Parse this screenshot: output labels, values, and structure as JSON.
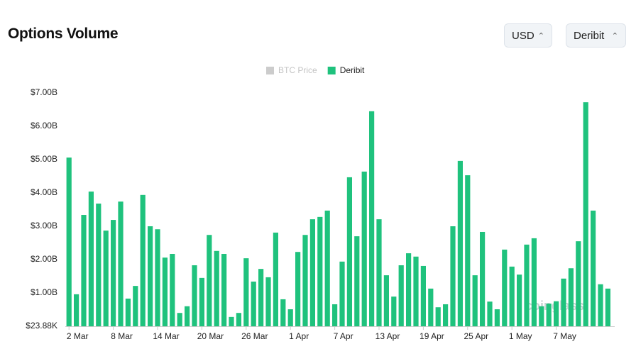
{
  "title": "Options Volume",
  "currency_select": "USD",
  "exchange_select": "Deribit",
  "watermark": "coinglass",
  "chart_data": {
    "type": "bar",
    "legend": [
      {
        "name": "BTC Price",
        "color": "#cccccc",
        "hidden": true
      }
    ],
    "categories": [
      "2 Mar",
      null,
      null,
      null,
      null,
      null,
      "8 Mar",
      null,
      null,
      null,
      null,
      null,
      "14 Mar",
      null,
      null,
      null,
      null,
      null,
      "20 Mar",
      null,
      null,
      null,
      null,
      null,
      "26 Mar",
      null,
      null,
      null,
      null,
      null,
      "1 Apr",
      null,
      null,
      null,
      null,
      null,
      "7 Apr",
      null,
      null,
      null,
      null,
      null,
      "13 Apr",
      null,
      null,
      null,
      null,
      null,
      "19 Apr",
      null,
      null,
      null,
      null,
      null,
      "25 Apr",
      null,
      null,
      null,
      null,
      null,
      "1 May",
      null,
      null,
      null,
      null,
      null,
      "7 May",
      null,
      null,
      null,
      null,
      null,
      null,
      null
    ],
    "series": [
      {
        "name": "Deribit",
        "color": "#1fc27d",
        "values": [
          5.06,
          0.96,
          3.34,
          4.04,
          3.68,
          2.87,
          3.19,
          3.74,
          0.83,
          1.21,
          3.94,
          3.0,
          2.91,
          2.06,
          2.17,
          0.4,
          0.6,
          1.83,
          1.45,
          2.74,
          2.26,
          2.17,
          0.28,
          0.4,
          2.04,
          1.34,
          1.72,
          1.47,
          2.81,
          0.81,
          0.51,
          2.23,
          2.74,
          3.21,
          3.28,
          3.47,
          0.66,
          1.94,
          4.47,
          2.7,
          4.64,
          6.45,
          3.21,
          1.53,
          0.89,
          1.83,
          2.19,
          2.09,
          1.81,
          1.13,
          0.57,
          0.66,
          3.0,
          4.96,
          4.53,
          1.53,
          2.83,
          0.74,
          0.51,
          2.3,
          1.79,
          1.55,
          2.45,
          2.64,
          0.6,
          0.68,
          0.75,
          1.43,
          1.74,
          2.55,
          6.72,
          3.47,
          1.26,
          1.13
        ]
      }
    ],
    "ylim": [
      2.388e-05,
      7
    ],
    "yticks": [
      {
        "value": 2.388e-05,
        "label": "$23.88K"
      },
      {
        "value": 1,
        "label": "$1.00B"
      },
      {
        "value": 2,
        "label": "$2.00B"
      },
      {
        "value": 3,
        "label": "$3.00B"
      },
      {
        "value": 4,
        "label": "$4.00B"
      },
      {
        "value": 5,
        "label": "$5.00B"
      },
      {
        "value": 6,
        "label": "$6.00B"
      },
      {
        "value": 7,
        "label": "$7.00B"
      }
    ],
    "grid": false
  }
}
